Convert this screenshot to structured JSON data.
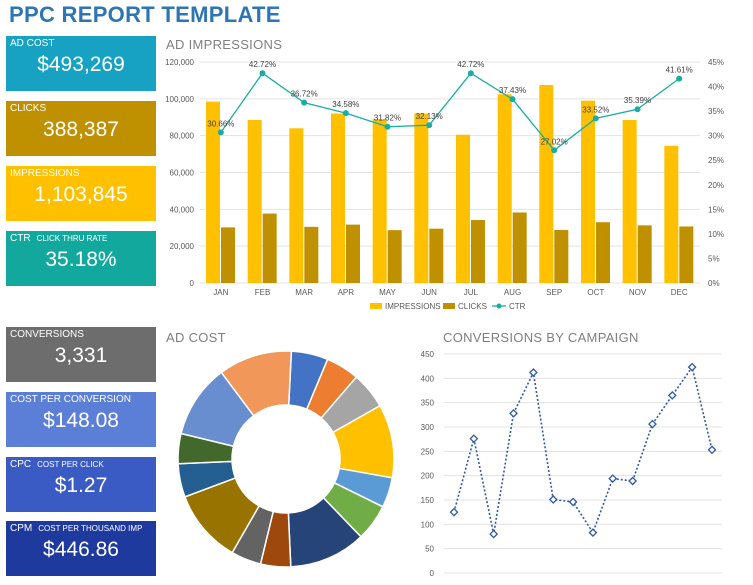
{
  "header": {
    "title": "PPC REPORT TEMPLATE"
  },
  "kpis_top": [
    {
      "label": "AD COST",
      "sub": "",
      "value": "$493,269",
      "color": "#17a2c4"
    },
    {
      "label": "CLICKS",
      "sub": "",
      "value": "388,387",
      "color": "#bf9000"
    },
    {
      "label": "IMPRESSIONS",
      "sub": "",
      "value": "1,103,845",
      "color": "#ffc000"
    },
    {
      "label": "CTR",
      "sub": "CLICK THRU RATE",
      "value": "35.18%",
      "color": "#12a89d"
    }
  ],
  "kpis_bottom": [
    {
      "label": "CONVERSIONS",
      "sub": "",
      "value": "3,331",
      "color": "#6d6d6d"
    },
    {
      "label": "COST PER CONVERSION",
      "sub": "",
      "value": "$148.08",
      "color": "#5b7fd6"
    },
    {
      "label": "CPC",
      "sub": "COST PER CLICK",
      "value": "$1.27",
      "color": "#3b5bc4"
    },
    {
      "label": "CPM",
      "sub": "COST PER THOUSAND IMP",
      "value": "$446.86",
      "color": "#1f3a9e"
    }
  ],
  "chart_data": [
    {
      "type": "bar",
      "title": "AD IMPRESSIONS",
      "categories": [
        "JAN",
        "FEB",
        "MAR",
        "APR",
        "MAY",
        "JUN",
        "JUL",
        "AUG",
        "SEP",
        "OCT",
        "NOV",
        "DEC"
      ],
      "y_ticks": [
        "0",
        "20,000",
        "40,000",
        "60,000",
        "80,000",
        "100,000",
        "120,000"
      ],
      "y_right_ticks": [
        "0%",
        "5%",
        "10%",
        "15%",
        "20%",
        "25%",
        "30%",
        "35%",
        "40%",
        "45%"
      ],
      "ylim": [
        0,
        120000
      ],
      "y2lim": [
        0,
        45
      ],
      "series": [
        {
          "name": "IMPRESSIONS",
          "type": "bar",
          "color": "#ffc000",
          "values": [
            98500,
            88500,
            84000,
            92000,
            89000,
            92000,
            80500,
            102500,
            107500,
            99000,
            88500,
            74500
          ]
        },
        {
          "name": "CLICKS",
          "type": "bar",
          "color": "#bf9000",
          "values": [
            30200,
            37700,
            30500,
            31700,
            28700,
            29500,
            34200,
            38300,
            28800,
            33000,
            31300,
            30700
          ]
        },
        {
          "name": "CTR",
          "type": "line",
          "axis": "right",
          "color": "#1aada6",
          "values": [
            30.66,
            42.72,
            36.72,
            34.58,
            31.82,
            32.13,
            42.72,
            37.43,
            27.02,
            33.52,
            35.39,
            41.61
          ]
        }
      ],
      "data_labels": [
        "30.66%",
        "42.72%",
        "36.72%",
        "34.58%",
        "31.82%",
        "32.13%",
        "42.72%",
        "37.43%",
        "27.02%",
        "33.52%",
        "35.39%",
        "41.61%"
      ],
      "legend": "bottom"
    },
    {
      "type": "pie",
      "title": "AD COST",
      "donut": true,
      "slices": [
        {
          "value": 5.5,
          "color": "#4472c4"
        },
        {
          "value": 5.0,
          "color": "#ed7d31"
        },
        {
          "value": 5.5,
          "color": "#a5a5a5"
        },
        {
          "value": 11.0,
          "color": "#ffc000"
        },
        {
          "value": 4.5,
          "color": "#5b9bd5"
        },
        {
          "value": 5.5,
          "color": "#70ad47"
        },
        {
          "value": 11.5,
          "color": "#264478"
        },
        {
          "value": 4.5,
          "color": "#9e480e"
        },
        {
          "value": 4.5,
          "color": "#636363"
        },
        {
          "value": 11.0,
          "color": "#997300"
        },
        {
          "value": 5.0,
          "color": "#255e91"
        },
        {
          "value": 4.5,
          "color": "#43682b"
        },
        {
          "value": 11.0,
          "color": "#698ed0"
        },
        {
          "value": 11.0,
          "color": "#f1975a"
        }
      ]
    },
    {
      "type": "line",
      "title": "CONVERSIONS BY CAMPAIGN",
      "y_ticks": [
        "0",
        "50",
        "100",
        "150",
        "200",
        "250",
        "300",
        "350",
        "400",
        "450"
      ],
      "ylim": [
        0,
        450
      ],
      "color": "#2e5aa8",
      "values": [
        125,
        276,
        80,
        328,
        412,
        151,
        146,
        83,
        194,
        189,
        306,
        365,
        423,
        253
      ]
    }
  ]
}
